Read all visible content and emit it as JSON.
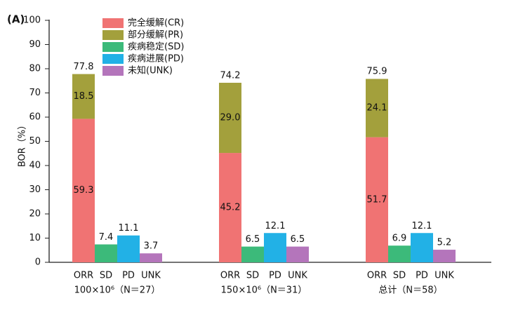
{
  "chart_data": {
    "type": "bar",
    "panel_label": "(A)",
    "y_label": "BOR（%）",
    "categories": [
      "ORR",
      "SD",
      "PD",
      "UNK",
      "ORR",
      "SD",
      "PD",
      "UNK",
      "ORR",
      "SD",
      "PD",
      "UNK"
    ],
    "groups": [
      "100×10⁶（N＝27）",
      "150×10⁶（N＝31）",
      "总计（N＝58）"
    ],
    "series": [
      {
        "name": "完全缓解(CR)",
        "color": "#f07373",
        "values": [
          59.3,
          null,
          null,
          null,
          45.2,
          null,
          null,
          null,
          51.7,
          null,
          null,
          null
        ]
      },
      {
        "name": "部分缓解(PR)",
        "color": "#a3a03c",
        "values": [
          18.5,
          null,
          null,
          null,
          29.0,
          null,
          null,
          null,
          24.1,
          null,
          null,
          null
        ],
        "value_labels": [
          "18.5",
          null,
          null,
          null,
          "29.0",
          null,
          null,
          null,
          "24.1",
          null,
          null,
          null
        ]
      },
      {
        "name": "疾病稳定(SD)",
        "color": "#3cba7a",
        "values": [
          null,
          7.4,
          null,
          null,
          null,
          6.5,
          null,
          null,
          null,
          6.9,
          null,
          null
        ]
      },
      {
        "name": "疾病进展(PD)",
        "color": "#22b1e6",
        "values": [
          null,
          null,
          11.1,
          null,
          null,
          null,
          12.1,
          null,
          null,
          null,
          12.1,
          null
        ]
      },
      {
        "name": "未知(UNK)",
        "color": "#b475bb",
        "values": [
          null,
          null,
          null,
          3.7,
          null,
          null,
          null,
          6.5,
          null,
          null,
          null,
          5.2
        ]
      }
    ],
    "totals": [
      77.8,
      null,
      null,
      null,
      74.2,
      null,
      null,
      null,
      75.9,
      null,
      null,
      null
    ],
    "ylim": [
      0,
      100
    ],
    "yticks": [
      0,
      10,
      20,
      30,
      40,
      50,
      60,
      70,
      80,
      90,
      100
    ],
    "grid": false,
    "stacked": true
  }
}
